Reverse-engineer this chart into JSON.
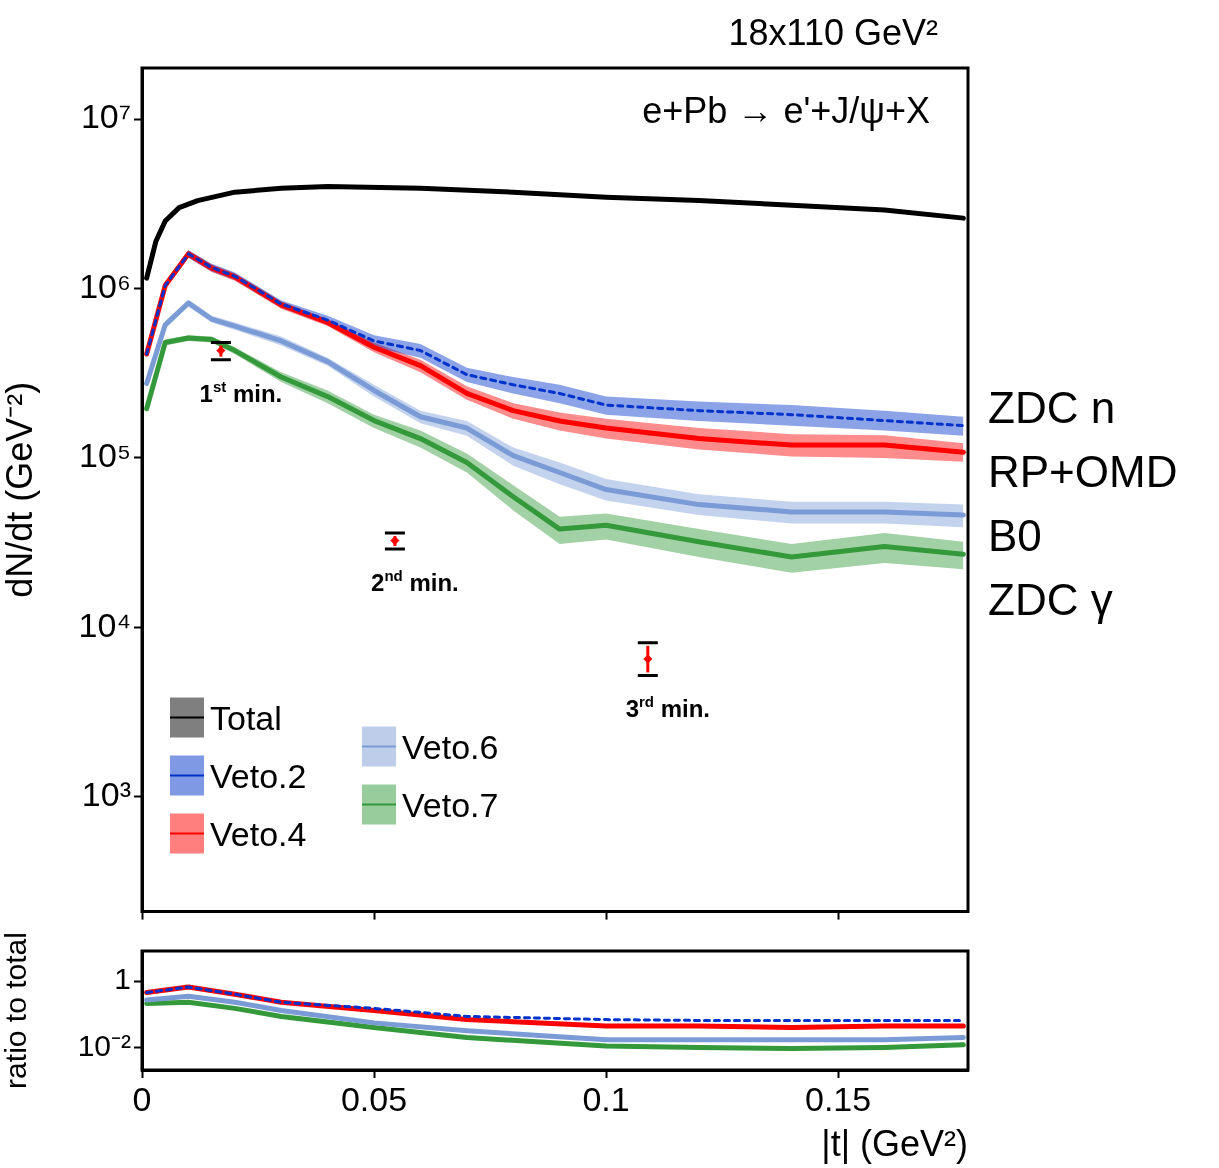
{
  "chart_data": [
    {
      "type": "line",
      "title": "18x110 GeV²",
      "ylabel": "dN/dt (GeV⁻²)",
      "log": "y",
      "grid": false,
      "legend": "bottom left",
      "tick_labels": "y",
      "xlim": [
        0,
        0.178
      ],
      "xticks": [
        0,
        0.05,
        0.1,
        0.15
      ],
      "ylim": [
        210,
        20000000
      ],
      "yticks": [
        {
          "value": 1000,
          "label": "10³"
        },
        {
          "value": 10000,
          "label": "10⁴"
        },
        {
          "value": 100000,
          "label": "10⁵"
        },
        {
          "value": 1000000,
          "label": "10⁶"
        },
        {
          "value": 10000000,
          "label": "10⁷"
        }
      ],
      "x": [
        0.001,
        0.005,
        0.01,
        0.015,
        0.02,
        0.03,
        0.04,
        0.05,
        0.06,
        0.07,
        0.08,
        0.09,
        0.1,
        0.12,
        0.14,
        0.16,
        0.177
      ],
      "series": [
        {
          "name": "Total",
          "color": "#000000",
          "x": [
            0.001,
            0.003,
            0.005,
            0.008,
            0.012,
            0.02,
            0.03,
            0.04,
            0.06,
            0.08,
            0.1,
            0.12,
            0.14,
            0.16,
            0.177
          ],
          "values": [
            1150000,
            1900000,
            2500000,
            3000000,
            3300000,
            3700000,
            3900000,
            4000000,
            3900000,
            3700000,
            3450000,
            3300000,
            3100000,
            2900000,
            2600000
          ]
        },
        {
          "name": "Veto.2",
          "color": "#0033cc",
          "line_style": "dotted",
          "values": [
            410000,
            1040000,
            1600000,
            1330000,
            1180000,
            810000,
            650000,
            490000,
            430000,
            310000,
            270000,
            240000,
            205000,
            190000,
            180000,
            166000,
            155000
          ],
          "lower": [
            390000,
            990000,
            1520000,
            1260000,
            1120000,
            770000,
            610000,
            450000,
            390000,
            280000,
            240000,
            210000,
            180000,
            165000,
            155000,
            145000,
            135000
          ],
          "upper": [
            430000,
            1090000,
            1680000,
            1400000,
            1240000,
            850000,
            690000,
            530000,
            470000,
            340000,
            300000,
            270000,
            230000,
            215000,
            205000,
            190000,
            175000
          ]
        },
        {
          "name": "Veto.4",
          "color": "#ff0000",
          "values": [
            410000,
            1040000,
            1600000,
            1320000,
            1170000,
            800000,
            630000,
            450000,
            350000,
            240000,
            190000,
            165000,
            150000,
            130000,
            119000,
            119000,
            108000
          ],
          "lower": [
            390000,
            990000,
            1520000,
            1250000,
            1110000,
            760000,
            600000,
            420000,
            320000,
            220000,
            170000,
            145000,
            130000,
            112000,
            102000,
            100000,
            95000
          ],
          "upper": [
            430000,
            1090000,
            1680000,
            1390000,
            1230000,
            840000,
            660000,
            480000,
            380000,
            265000,
            210000,
            185000,
            170000,
            150000,
            138000,
            136000,
            122000
          ]
        },
        {
          "name": "Veto.6",
          "color": "#7b9bd6",
          "values": [
            275000,
            610000,
            820000,
            660000,
            600000,
            490000,
            370000,
            250000,
            175000,
            150000,
            103000,
            82000,
            65000,
            53000,
            48000,
            48000,
            46000
          ],
          "lower": [
            260000,
            580000,
            780000,
            630000,
            570000,
            460000,
            350000,
            230000,
            160000,
            135000,
            90000,
            70000,
            56000,
            46000,
            41000,
            41000,
            39000
          ],
          "upper": [
            290000,
            640000,
            860000,
            690000,
            630000,
            520000,
            390000,
            270000,
            190000,
            165000,
            115000,
            94000,
            75000,
            61000,
            55000,
            55000,
            53000
          ]
        },
        {
          "name": "Veto.7",
          "color": "#33993a",
          "values": [
            195000,
            480000,
            510000,
            500000,
            430000,
            300000,
            230000,
            166000,
            130000,
            94000,
            59000,
            38000,
            40000,
            32000,
            26000,
            30000,
            27000
          ],
          "lower": [
            185000,
            460000,
            490000,
            480000,
            410000,
            280000,
            210000,
            150000,
            115000,
            82000,
            49000,
            31000,
            33000,
            26000,
            21000,
            24000,
            22000
          ],
          "upper": [
            205000,
            500000,
            530000,
            520000,
            450000,
            320000,
            250000,
            180000,
            145000,
            106000,
            69000,
            45000,
            47000,
            38000,
            31000,
            36000,
            32000
          ]
        },
        {
          "type": "scatter",
          "color": "#ff0000",
          "marker": "diamond",
          "x": [
            0.017,
            0.0545,
            0.109
          ],
          "values": [
            430000,
            32500,
            6500
          ],
          "errors": [
            [
              380000,
              480000
            ],
            [
              29000,
              36000
            ],
            [
              5200,
              8100
            ]
          ]
        }
      ],
      "annotations": [
        "e+Pb → e'+J/ψ+X",
        "ZDC n",
        "RP+OMD",
        "B0",
        "ZDC γ",
        "1$^{st}$ min.",
        "2$^{nd}$ min.",
        "3$^{rd}$ min."
      ]
    },
    {
      "type": "line",
      "xlabel": "|t| (GeV²)",
      "ylabel": "ratio to total",
      "log": "y",
      "grid": false,
      "legend": false,
      "xlim": [
        0,
        0.178
      ],
      "xticks": [
        0,
        0.05,
        0.1,
        0.15
      ],
      "ylim": [
        0.0021,
        8
      ],
      "yticks": [
        1,
        {
          "value": 0.01,
          "label": "10⁻²"
        }
      ],
      "x": [
        0.001,
        0.01,
        0.02,
        0.03,
        0.05,
        0.07,
        0.1,
        0.12,
        0.14,
        0.16,
        0.177
      ],
      "series": [
        {
          "color": "#0033cc",
          "line_style": "dotted",
          "values": [
            0.45,
            0.66,
            0.4,
            0.23,
            0.15,
            0.086,
            0.069,
            0.065,
            0.065,
            0.065,
            0.065
          ]
        },
        {
          "color": "#ff0000",
          "values": [
            0.45,
            0.66,
            0.4,
            0.23,
            0.13,
            0.069,
            0.044,
            0.044,
            0.04,
            0.044,
            0.044
          ]
        },
        {
          "color": "#7b9bd6",
          "values": [
            0.27,
            0.35,
            0.23,
            0.13,
            0.055,
            0.032,
            0.017,
            0.017,
            0.017,
            0.017,
            0.02
          ]
        },
        {
          "color": "#33993a",
          "values": [
            0.21,
            0.23,
            0.15,
            0.086,
            0.04,
            0.02,
            0.011,
            0.01,
            0.0093,
            0.01,
            0.012
          ]
        }
      ]
    }
  ]
}
